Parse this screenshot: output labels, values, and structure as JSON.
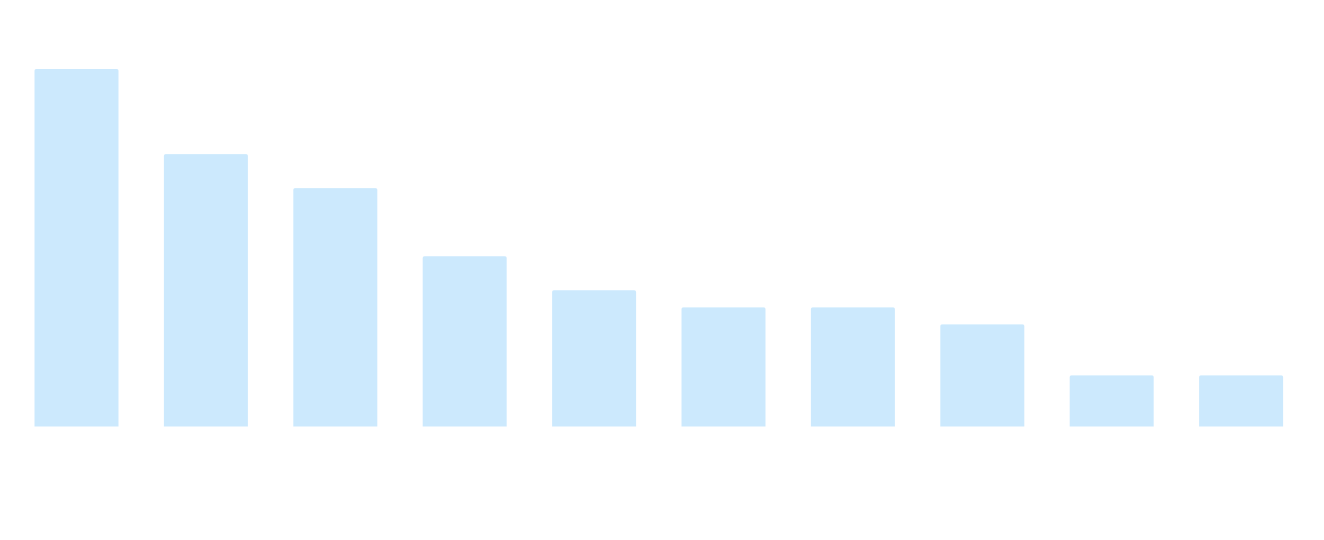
{
  "chart_data": {
    "type": "bar",
    "categories": [
      null,
      null,
      null,
      null,
      null,
      null,
      null,
      null,
      null,
      null
    ],
    "values": [
      21,
      16,
      14,
      10,
      8,
      7,
      7,
      6,
      3,
      3
    ],
    "color": "#cce9fd",
    "ylim": [
      0,
      21
    ]
  }
}
